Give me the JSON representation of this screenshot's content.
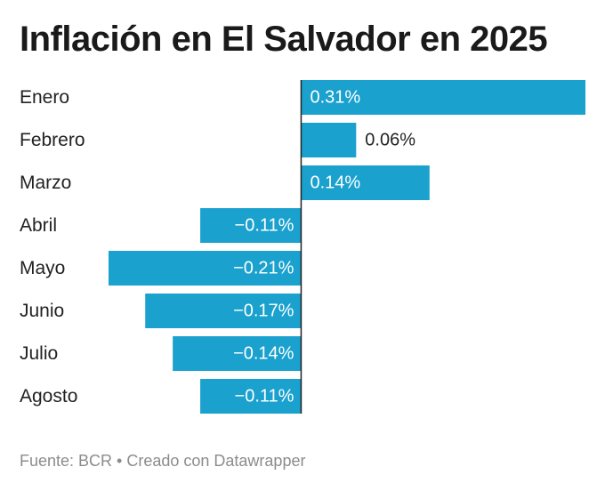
{
  "chart_data": {
    "type": "bar",
    "orientation": "horizontal",
    "title": "Inflación en El Salvador en 2025",
    "categories": [
      "Enero",
      "Febrero",
      "Marzo",
      "Abril",
      "Mayo",
      "Junio",
      "Julio",
      "Agosto"
    ],
    "values": [
      0.31,
      0.06,
      0.14,
      -0.11,
      -0.21,
      -0.17,
      -0.14,
      -0.11
    ],
    "value_labels": [
      "0.31%",
      "0.06%",
      "0.14%",
      "−0.11%",
      "−0.21%",
      "−0.17%",
      "−0.14%",
      "−0.11%"
    ],
    "xlim": [
      -0.21,
      0.31
    ],
    "grid": false,
    "bar_color": "#1aa1ce"
  },
  "footer": {
    "text": "Fuente: BCR • Creado con Datawrapper"
  }
}
